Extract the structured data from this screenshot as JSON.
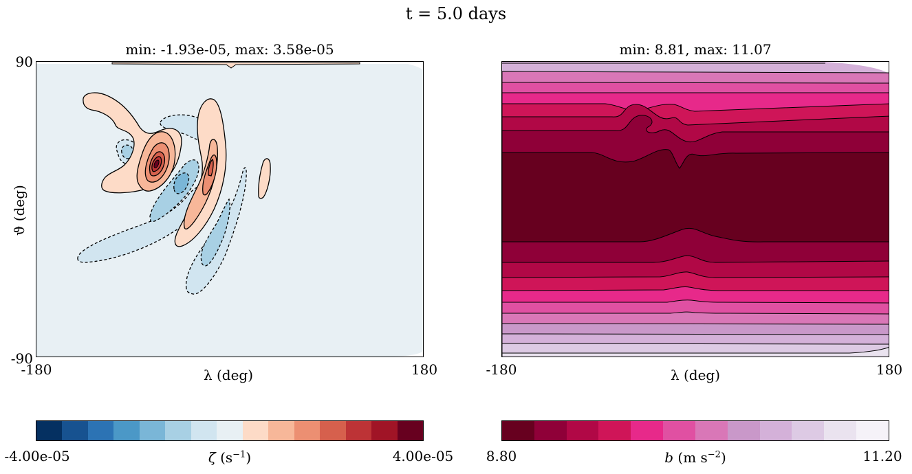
{
  "figure": {
    "title": "t = 5.0 days"
  },
  "chart_data": [
    {
      "type": "heatmap",
      "title": "min: -1.93e-05, max: 3.58e-05",
      "xlabel": "λ (deg)",
      "ylabel": "ϑ (deg)",
      "xlim": [
        -180,
        180
      ],
      "ylim": [
        -90,
        90
      ],
      "x_ticks": [
        "-180",
        "180"
      ],
      "y_ticks": [
        "-90",
        "90"
      ],
      "colorbar": {
        "label_symbol": "ζ",
        "label_units": "(s",
        "label_exp": "−1",
        "label_close": ")",
        "min_label": "-4.00e-05",
        "max_label": "4.00e-05",
        "colors": [
          "#053061",
          "#175290",
          "#2c73b4",
          "#4b98c7",
          "#7ab6d7",
          "#a8d0e4",
          "#d1e5f0",
          "#e8f0f4",
          "#fddbc7",
          "#f7b799",
          "#ec8f72",
          "#d6604d",
          "#bd3336",
          "#a01426",
          "#67001f"
        ]
      }
    },
    {
      "type": "heatmap",
      "title": "min: 8.81, max: 11.07",
      "xlabel": "λ (deg)",
      "xlim": [
        -180,
        180
      ],
      "x_ticks": [
        "-180",
        "180"
      ],
      "colorbar": {
        "label_symbol": "b",
        "label_units": "(m s",
        "label_exp": "−2",
        "label_close": ")",
        "min_label": "8.80",
        "max_label": "11.20",
        "colors": [
          "#67001f",
          "#8f0038",
          "#b10846",
          "#cf1558",
          "#e7298a",
          "#e050a2",
          "#d977b7",
          "#c998c9",
          "#d4b1d9",
          "#ddcae4",
          "#eae3ef",
          "#f5f2f8"
        ]
      }
    }
  ]
}
